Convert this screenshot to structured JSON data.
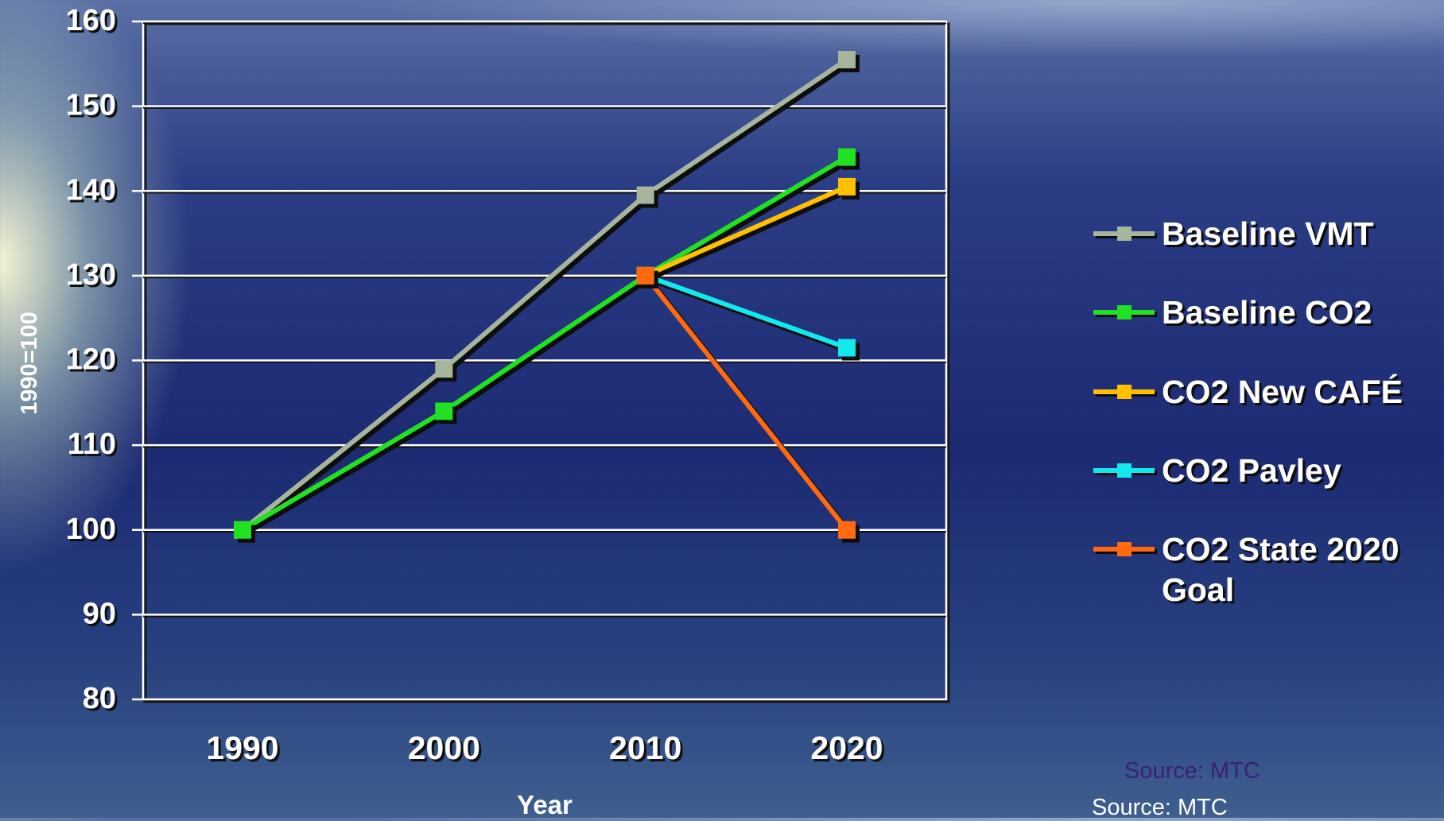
{
  "chart_data": {
    "type": "line",
    "categories": [
      "1990",
      "2000",
      "2010",
      "2020"
    ],
    "series": [
      {
        "name": "Baseline VMT",
        "color": "#a6b59c",
        "values": [
          100,
          119,
          139.5,
          155.5
        ]
      },
      {
        "name": "Baseline CO2",
        "color": "#22e022",
        "values": [
          100,
          114,
          130,
          144
        ]
      },
      {
        "name": "CO2 New CAFÉ",
        "color": "#ffc000",
        "values": [
          null,
          null,
          130,
          140.5
        ]
      },
      {
        "name": "CO2 Pavley",
        "color": "#13e8ec",
        "values": [
          null,
          null,
          130,
          121.5
        ]
      },
      {
        "name": "CO2 State 2020 Goal",
        "color": "#ff6a10",
        "values": [
          null,
          null,
          130,
          100
        ]
      }
    ],
    "xlabel": "Year",
    "ylabel": "1990=100",
    "ylim": [
      80,
      160
    ],
    "yticks": [
      80,
      90,
      100,
      110,
      120,
      130,
      140,
      150,
      160
    ],
    "grid": true,
    "legend_position": "right"
  },
  "source_labels": [
    "Source: MTC",
    "Source: MTC"
  ]
}
